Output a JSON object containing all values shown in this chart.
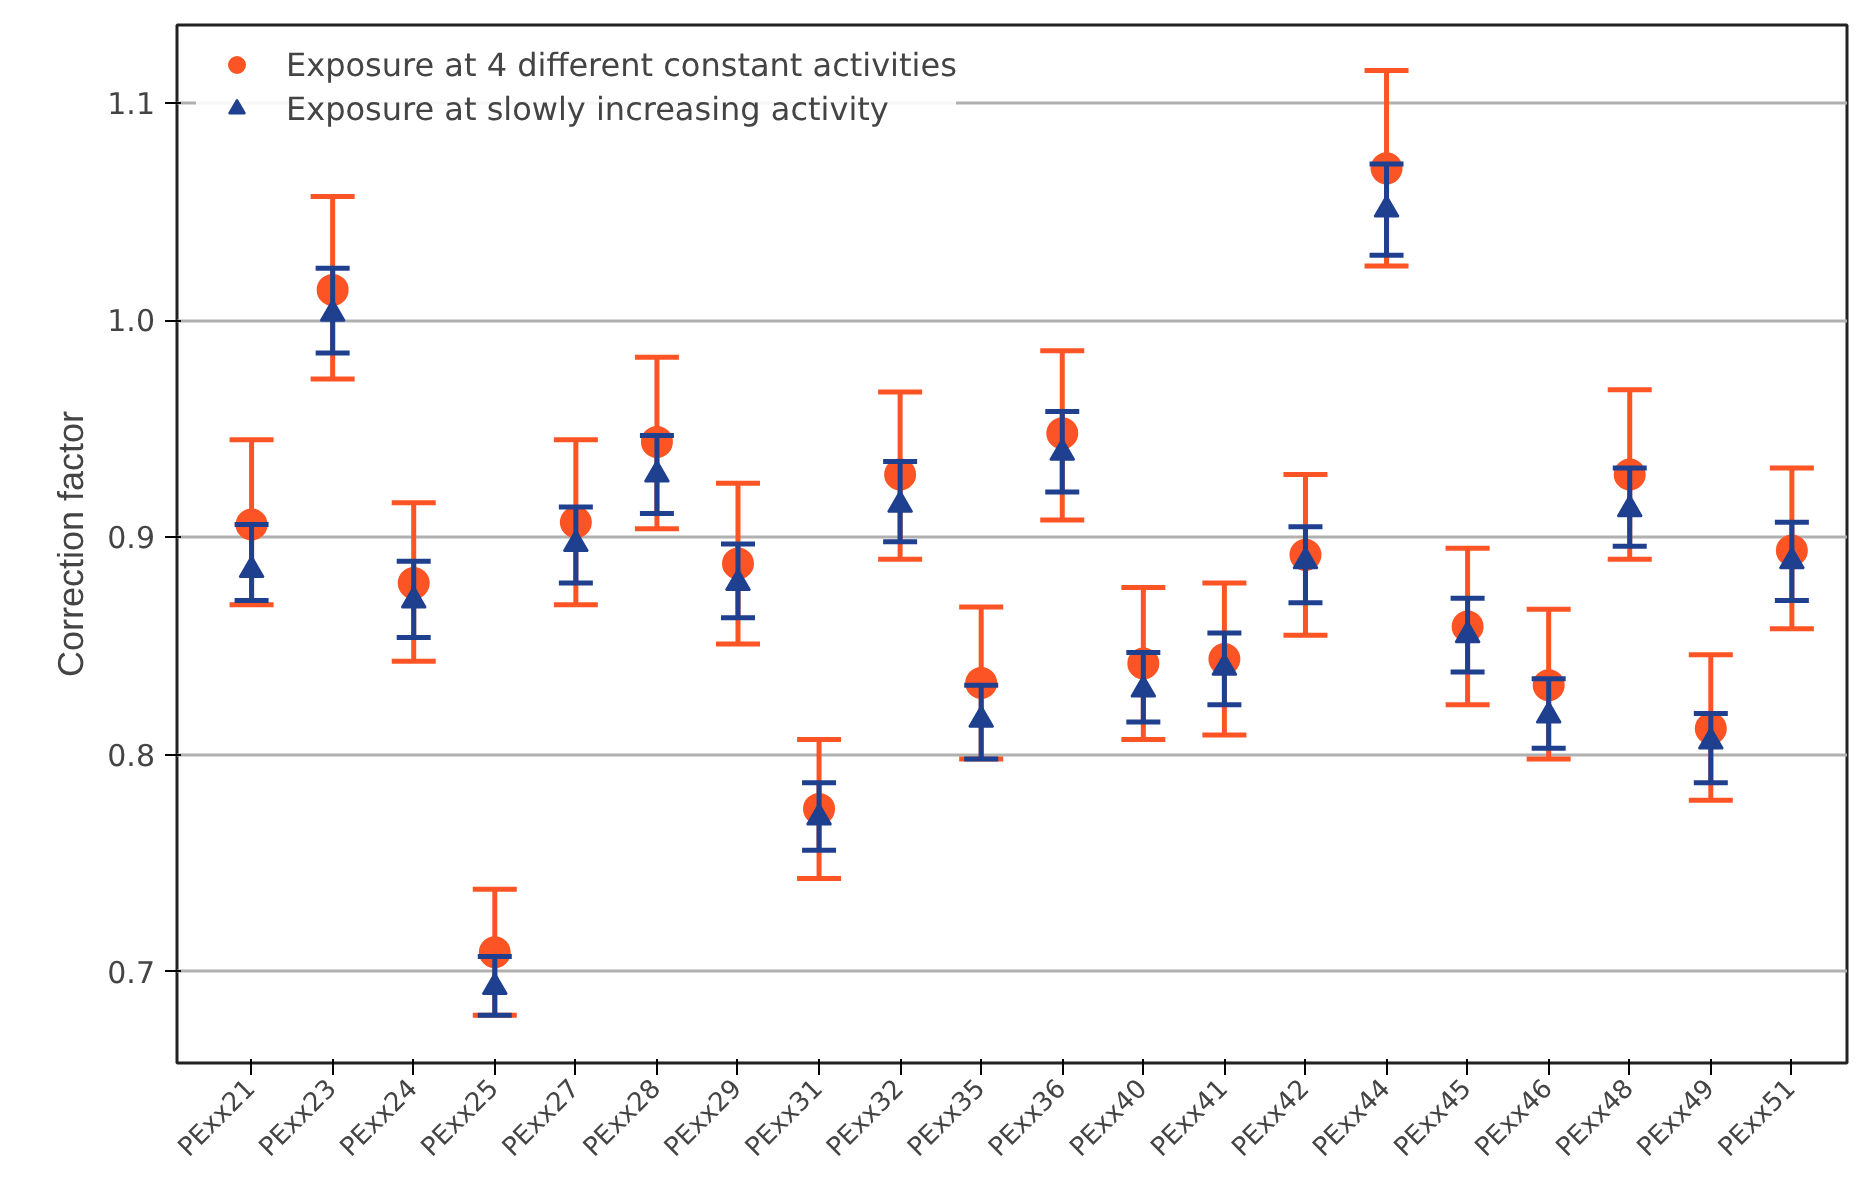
{
  "chart_data": {
    "type": "scatter",
    "ylabel": "Correction factor",
    "categories": [
      "PExx21",
      "PExx23",
      "PExx24",
      "PExx25",
      "PExx27",
      "PExx28",
      "PExx29",
      "PExx31",
      "PExx32",
      "PExx35",
      "PExx36",
      "PExx40",
      "PExx41",
      "PExx42",
      "PExx44",
      "PExx45",
      "PExx46",
      "PExx48",
      "PExx49",
      "PExx51"
    ],
    "series": [
      {
        "name": "Exposure at 4 different constant activities",
        "color": "#fc5424",
        "marker": "circle",
        "values": [
          0.906,
          1.014,
          0.879,
          0.709,
          0.907,
          0.944,
          0.888,
          0.775,
          0.929,
          0.833,
          0.948,
          0.842,
          0.844,
          0.892,
          1.07,
          0.859,
          0.832,
          0.929,
          0.812,
          0.894
        ],
        "errors": [
          [
            0.869,
            0.945
          ],
          [
            0.973,
            1.057
          ],
          [
            0.843,
            0.916
          ],
          [
            0.68,
            0.738
          ],
          [
            0.869,
            0.945
          ],
          [
            0.904,
            0.983
          ],
          [
            0.851,
            0.925
          ],
          [
            0.743,
            0.807
          ],
          [
            0.89,
            0.967
          ],
          [
            0.798,
            0.868
          ],
          [
            0.908,
            0.986
          ],
          [
            0.807,
            0.877
          ],
          [
            0.809,
            0.879
          ],
          [
            0.855,
            0.929
          ],
          [
            1.025,
            1.115
          ],
          [
            0.823,
            0.895
          ],
          [
            0.798,
            0.867
          ],
          [
            0.89,
            0.968
          ],
          [
            0.779,
            0.846
          ],
          [
            0.858,
            0.932
          ]
        ]
      },
      {
        "name": "Exposure at slowly increasing activity",
        "color": "#1f3f8f",
        "marker": "triangle",
        "values": [
          0.885,
          1.003,
          0.871,
          0.693,
          0.897,
          0.929,
          0.879,
          0.771,
          0.915,
          0.816,
          0.939,
          0.83,
          0.84,
          0.889,
          1.051,
          0.855,
          0.818,
          0.913,
          0.806,
          0.889
        ],
        "errors": [
          [
            0.871,
            0.906
          ],
          [
            0.985,
            1.024
          ],
          [
            0.854,
            0.889
          ],
          [
            0.68,
            0.707
          ],
          [
            0.879,
            0.914
          ],
          [
            0.911,
            0.947
          ],
          [
            0.863,
            0.897
          ],
          [
            0.756,
            0.787
          ],
          [
            0.898,
            0.935
          ],
          [
            0.798,
            0.832
          ],
          [
            0.921,
            0.958
          ],
          [
            0.815,
            0.847
          ],
          [
            0.823,
            0.856
          ],
          [
            0.87,
            0.905
          ],
          [
            1.03,
            1.072
          ],
          [
            0.838,
            0.872
          ],
          [
            0.803,
            0.835
          ],
          [
            0.896,
            0.932
          ],
          [
            0.787,
            0.819
          ],
          [
            0.871,
            0.907
          ]
        ]
      }
    ],
    "ylim": [
      0.658,
      1.136
    ],
    "yticks": [
      0.7,
      0.8,
      0.9,
      {
        "value": 1.0,
        "label": "1.0"
      },
      1.1
    ],
    "grid": "y",
    "legend": "top left"
  }
}
